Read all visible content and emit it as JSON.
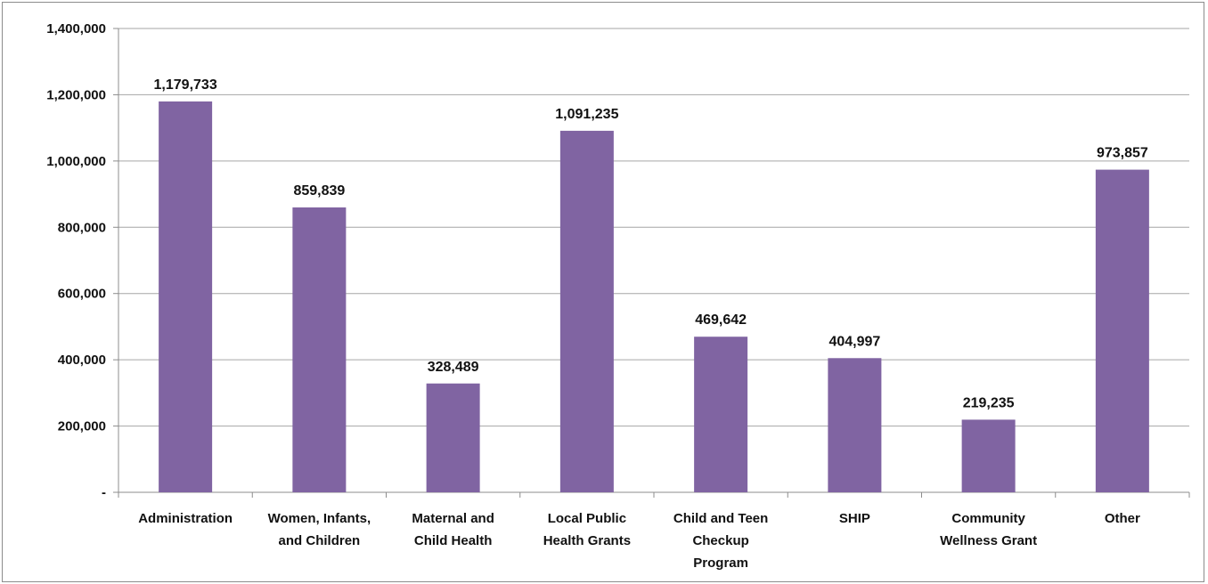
{
  "chart_data": {
    "type": "bar",
    "categories": [
      [
        "Administration"
      ],
      [
        "Women, Infants,",
        "and Children"
      ],
      [
        "Maternal and",
        "Child Health"
      ],
      [
        "Local Public",
        "Health Grants"
      ],
      [
        "Child and Teen",
        "Checkup",
        "Program"
      ],
      [
        "SHIP"
      ],
      [
        "Community",
        "Wellness Grant"
      ],
      [
        "Other"
      ]
    ],
    "values": [
      1179733,
      859839,
      328489,
      1091235,
      469642,
      404997,
      219235,
      973857
    ],
    "data_labels": [
      "1,179,733",
      "859,839",
      "328,489",
      "1,091,235",
      "469,642",
      "404,997",
      "219,235",
      "973,857"
    ],
    "y_ticks": [
      {
        "value": 0,
        "label": "-"
      },
      {
        "value": 200000,
        "label": "200,000"
      },
      {
        "value": 400000,
        "label": "400,000"
      },
      {
        "value": 600000,
        "label": "600,000"
      },
      {
        "value": 800000,
        "label": "800,000"
      },
      {
        "value": 1000000,
        "label": "1,000,000"
      },
      {
        "value": 1200000,
        "label": "1,200,000"
      },
      {
        "value": 1400000,
        "label": "1,400,000"
      }
    ],
    "ylim": [
      0,
      1400000
    ],
    "grid": true,
    "bar_color": "#8064a2",
    "grid_color": "#a6a6a6",
    "axis_color": "#8c8c8c"
  }
}
